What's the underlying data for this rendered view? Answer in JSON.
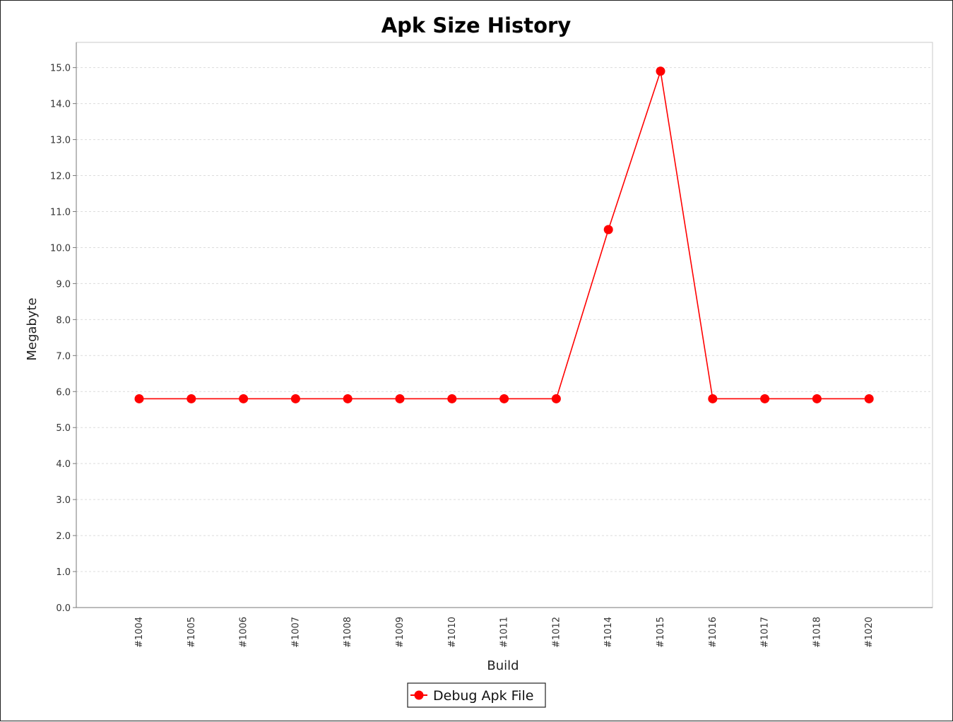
{
  "chart_data": {
    "type": "line",
    "title": "Apk Size History",
    "xlabel": "Build",
    "ylabel": "Megabyte",
    "ylim": [
      0,
      15.7
    ],
    "yticks": [
      "0.0",
      "1.0",
      "2.0",
      "3.0",
      "4.0",
      "5.0",
      "6.0",
      "7.0",
      "8.0",
      "9.0",
      "10.0",
      "11.0",
      "12.0",
      "13.0",
      "14.0",
      "15.0"
    ],
    "grid": true,
    "legend_position": "bottom-center",
    "categories": [
      "#1004",
      "#1005",
      "#1006",
      "#1007",
      "#1008",
      "#1009",
      "#1010",
      "#1011",
      "#1012",
      "#1014",
      "#1015",
      "#1016",
      "#1017",
      "#1018",
      "#1020"
    ],
    "series": [
      {
        "name": "Debug Apk File",
        "color": "#ff0000",
        "values": [
          5.8,
          5.8,
          5.8,
          5.8,
          5.8,
          5.8,
          5.8,
          5.8,
          5.8,
          10.5,
          14.9,
          5.8,
          5.8,
          5.8,
          5.8
        ]
      }
    ]
  }
}
